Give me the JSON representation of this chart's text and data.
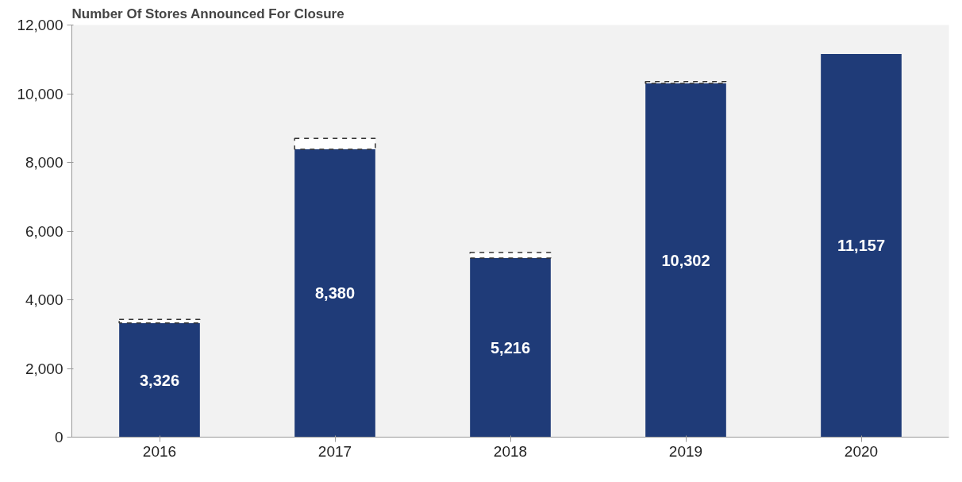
{
  "chart_data": {
    "type": "bar",
    "title": "Number Of Stores Announced For Closure",
    "categories": [
      "2016",
      "2017",
      "2018",
      "2019",
      "2020"
    ],
    "stacked": true,
    "series": [
      {
        "color": "#1f3b78",
        "values": [
          3326,
          8380,
          5216,
          10302,
          11157
        ],
        "value_labels": [
          "3,326",
          "8,380",
          "5,216",
          "10,302",
          "11,157"
        ]
      },
      {
        "color": "#ffffff",
        "line_style": "dashed",
        "values": [
          100,
          320,
          160,
          50,
          null
        ]
      }
    ],
    "ylim": [
      0,
      12000
    ],
    "yticks": [
      {
        "value": 0,
        "label": "0"
      },
      {
        "value": 2000,
        "label": "2,000"
      },
      {
        "value": 4000,
        "label": "4,000"
      },
      {
        "value": 6000,
        "label": "6,000"
      },
      {
        "value": 8000,
        "label": "8,000"
      },
      {
        "value": 10000,
        "label": "10,000"
      },
      {
        "value": 12000,
        "label": "12,000"
      }
    ],
    "grid": false
  }
}
